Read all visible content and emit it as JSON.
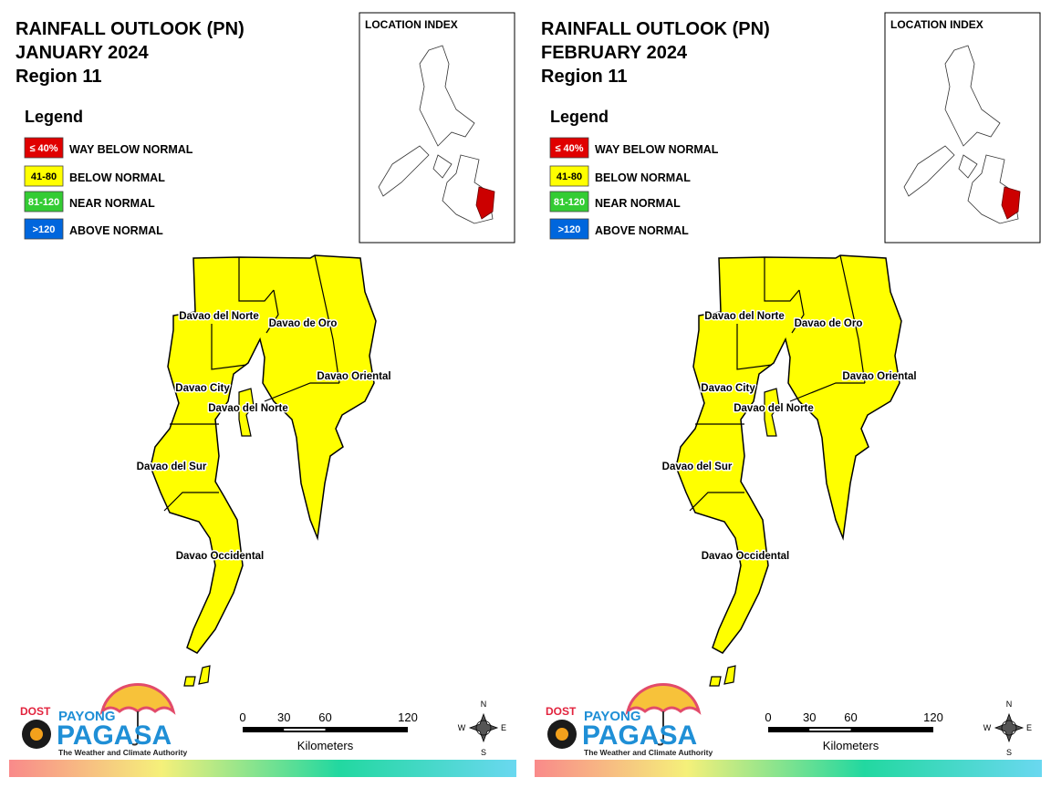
{
  "panels": [
    {
      "title": [
        "RAINFALL OUTLOOK (PN)",
        "JANUARY 2024",
        "Region 11"
      ],
      "legend": {
        "title": "Legend",
        "items": [
          {
            "swatch": "≤ 40%",
            "label": "WAY BELOW NORMAL",
            "color": "#e00000"
          },
          {
            "swatch": "41-80",
            "label": "BELOW NORMAL",
            "color": "#ffff00"
          },
          {
            "swatch": "81-120",
            "label": "NEAR NORMAL",
            "color": "#33cc33"
          },
          {
            "swatch": ">120",
            "label": "ABOVE NORMAL",
            "color": "#0066dd"
          }
        ]
      },
      "location_index": {
        "title": "LOCATION INDEX"
      },
      "map": {
        "fill": "#ffff00",
        "labels": [
          "Davao del Norte",
          "Davao de Oro",
          "Davao Oriental",
          "Davao City",
          "Davao del Norte",
          "Davao del Sur",
          "Davao Occidental"
        ]
      },
      "scale": {
        "ticks": [
          0,
          30,
          60,
          120
        ],
        "unit": "Kilometers"
      },
      "compass": {
        "n": "N",
        "e": "E",
        "s": "S",
        "w": "W"
      },
      "logo": {
        "agency": "DOST",
        "brand": "PAYONG",
        "name": "PAGASA",
        "tagline": "The Weather and Climate Authority"
      }
    },
    {
      "title": [
        "RAINFALL OUTLOOK (PN)",
        "FEBRUARY 2024",
        "Region 11"
      ],
      "legend": {
        "title": "Legend",
        "items": [
          {
            "swatch": "≤ 40%",
            "label": "WAY BELOW NORMAL",
            "color": "#e00000"
          },
          {
            "swatch": "41-80",
            "label": "BELOW NORMAL",
            "color": "#ffff00"
          },
          {
            "swatch": "81-120",
            "label": "NEAR NORMAL",
            "color": "#33cc33"
          },
          {
            "swatch": ">120",
            "label": "ABOVE NORMAL",
            "color": "#0066dd"
          }
        ]
      },
      "location_index": {
        "title": "LOCATION INDEX"
      },
      "map": {
        "fill": "#ffff00",
        "labels": [
          "Davao del Norte",
          "Davao de Oro",
          "Davao Oriental",
          "Davao City",
          "Davao del Norte",
          "Davao del Sur",
          "Davao Occidental"
        ]
      },
      "scale": {
        "ticks": [
          0,
          30,
          60,
          120
        ],
        "unit": "Kilometers"
      },
      "compass": {
        "n": "N",
        "e": "E",
        "s": "S",
        "w": "W"
      },
      "logo": {
        "agency": "DOST",
        "brand": "PAYONG",
        "name": "PAGASA",
        "tagline": "The Weather and Climate Authority"
      }
    }
  ]
}
